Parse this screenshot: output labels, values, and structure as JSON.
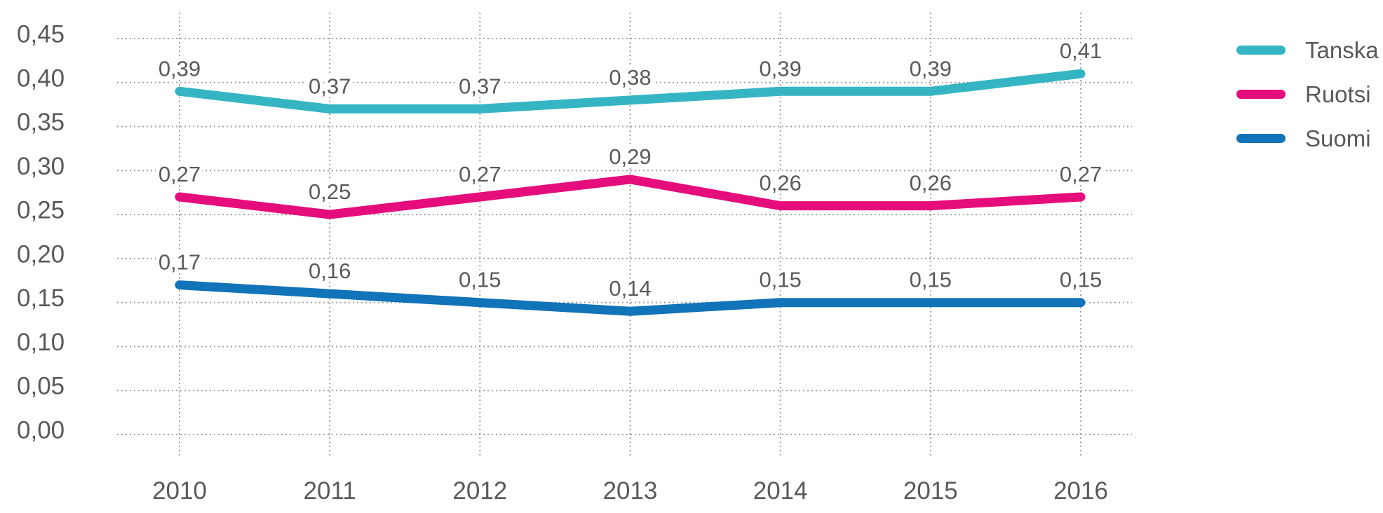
{
  "chart_data": {
    "type": "line",
    "title": "",
    "xlabel": "",
    "ylabel": "",
    "categories": [
      "2010",
      "2011",
      "2012",
      "2013",
      "2014",
      "2015",
      "2016"
    ],
    "series": [
      {
        "name": "Tanska",
        "color": "#35b5c3",
        "values": [
          0.39,
          0.37,
          0.37,
          0.38,
          0.39,
          0.39,
          0.41
        ],
        "point_labels": [
          "0,39",
          "0,37",
          "0,37",
          "0,38",
          "0,39",
          "0,39",
          "0,41"
        ]
      },
      {
        "name": "Ruotsi",
        "color": "#e50c7c",
        "values": [
          0.27,
          0.25,
          0.27,
          0.29,
          0.26,
          0.26,
          0.27
        ],
        "point_labels": [
          "0,27",
          "0,25",
          "0,27",
          "0,29",
          "0,26",
          "0,26",
          "0,27"
        ]
      },
      {
        "name": "Suomi",
        "color": "#1173b8",
        "values": [
          0.17,
          0.16,
          0.15,
          0.14,
          0.15,
          0.15,
          0.15
        ],
        "point_labels": [
          "0,17",
          "0,16",
          "0,15",
          "0,14",
          "0,15",
          "0,15",
          "0,15"
        ]
      }
    ],
    "ylim": [
      0,
      0.45
    ],
    "ytick_step": 0.05,
    "ytick_labels": [
      "0,00",
      "0,05",
      "0,10",
      "0,15",
      "0,20",
      "0,25",
      "0,30",
      "0,35",
      "0,40",
      "0,45"
    ],
    "decimal_separator": ",",
    "grid": {
      "horizontal": "dotted",
      "vertical": "dotted"
    },
    "legend_position": "top-right"
  },
  "legend": {
    "items": [
      {
        "label": "Tanska",
        "color": "#35b5c3"
      },
      {
        "label": "Ruotsi",
        "color": "#e50c7c"
      },
      {
        "label": "Suomi",
        "color": "#1173b8"
      }
    ]
  },
  "colors": {
    "background": "#ffffff",
    "text": "#58595b",
    "gridline": "#a0a0a0"
  }
}
